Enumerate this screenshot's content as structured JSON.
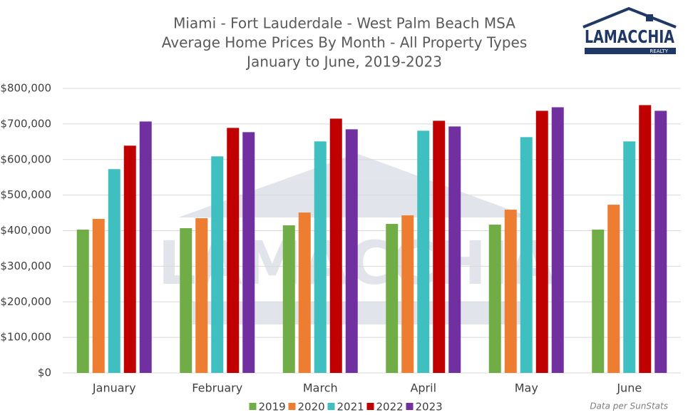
{
  "chart_data": {
    "type": "bar",
    "title": [
      "Miami - Fort Lauderdale - West Palm Beach MSA",
      "Average Home Prices By Month - All Property Types",
      "January to June, 2019-2023"
    ],
    "logo": {
      "name": "LAMACCHIA",
      "sub": "REALTY"
    },
    "note": "Data per SunStats",
    "categories": [
      "January",
      "February",
      "March",
      "April",
      "May",
      "June"
    ],
    "series": [
      {
        "name": "2019",
        "color": "#70ad47",
        "values": [
          403000,
          407000,
          415000,
          419000,
          417000,
          403000
        ]
      },
      {
        "name": "2020",
        "color": "#ed7d31",
        "values": [
          433000,
          435000,
          451000,
          443000,
          459000,
          473000
        ]
      },
      {
        "name": "2021",
        "color": "#3fbfbf",
        "values": [
          573000,
          609000,
          651000,
          681000,
          663000,
          651000
        ]
      },
      {
        "name": "2022",
        "color": "#c00000",
        "values": [
          639000,
          689000,
          715000,
          709000,
          737000,
          753000
        ]
      },
      {
        "name": "2023",
        "color": "#7030a0",
        "values": [
          707000,
          677000,
          685000,
          693000,
          747000,
          737000
        ]
      }
    ],
    "ylim": [
      0,
      800000
    ],
    "yticks": [
      {
        "value": 0,
        "label": "$0"
      },
      {
        "value": 100000,
        "label": "$100,000"
      },
      {
        "value": 200000,
        "label": "$200,000"
      },
      {
        "value": 300000,
        "label": "$300,000"
      },
      {
        "value": 400000,
        "label": "$400,000"
      },
      {
        "value": 500000,
        "label": "$500,000"
      },
      {
        "value": 600000,
        "label": "$600,000"
      },
      {
        "value": 700000,
        "label": "$700,000"
      },
      {
        "value": 800000,
        "label": "$800,000"
      }
    ],
    "grid": true,
    "legend": "bottom"
  }
}
